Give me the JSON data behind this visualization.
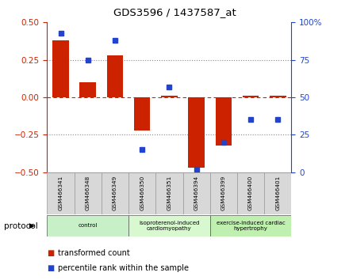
{
  "title": "GDS3596 / 1437587_at",
  "samples": [
    "GSM466341",
    "GSM466348",
    "GSM466349",
    "GSM466350",
    "GSM466351",
    "GSM466394",
    "GSM466399",
    "GSM466400",
    "GSM466401"
  ],
  "transformed_count": [
    0.38,
    0.1,
    0.28,
    -0.22,
    0.01,
    -0.47,
    -0.32,
    0.01,
    0.01
  ],
  "percentile_rank": [
    93,
    75,
    88,
    15,
    57,
    2,
    20,
    35,
    35
  ],
  "groups": [
    {
      "label": "control",
      "indices": [
        0,
        1,
        2
      ],
      "color": "#c8f0c8"
    },
    {
      "label": "isoproterenol-induced\ncardiomyopathy",
      "indices": [
        3,
        4,
        5
      ],
      "color": "#d8f8d0"
    },
    {
      "label": "exercise-induced cardiac\nhypertrophy",
      "indices": [
        6,
        7,
        8
      ],
      "color": "#c0f0b0"
    }
  ],
  "bar_color": "#cc2200",
  "dot_color": "#2244cc",
  "ylim_left": [
    -0.5,
    0.5
  ],
  "ylim_right": [
    0,
    100
  ],
  "yticks_left": [
    -0.5,
    -0.25,
    0,
    0.25,
    0.5
  ],
  "yticks_right": [
    0,
    25,
    50,
    75,
    100
  ],
  "hline_dotted_vals": [
    -0.25,
    0.25
  ],
  "zero_line_color": "#cc2200",
  "dotted_color": "#555555",
  "panel_color": "#d8d8d8",
  "legend_items": [
    {
      "label": "transformed count",
      "color": "#cc2200"
    },
    {
      "label": "percentile rank within the sample",
      "color": "#2244cc"
    }
  ],
  "protocol_label": "protocol",
  "bar_width": 0.6
}
